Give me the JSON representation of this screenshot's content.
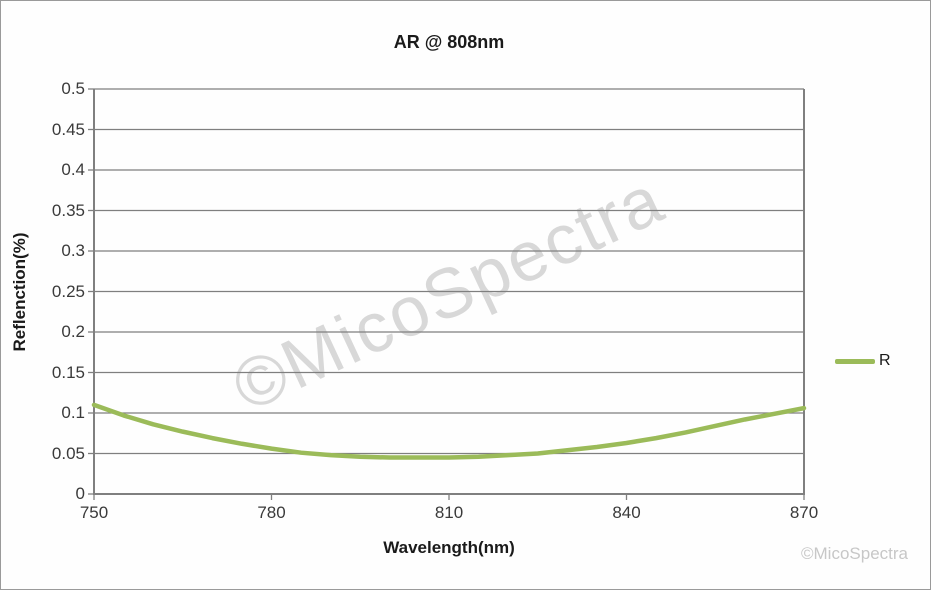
{
  "title": "AR @ 808nm",
  "colors": {
    "line": "#9bbb59",
    "gridline": "#7f7f7f",
    "axis": "#7f7f7f",
    "tick_text": "#3a3a3a",
    "watermark_center": "#aaaaaa",
    "watermark_corner": "#c7c7c7",
    "border": "#9a9a9a",
    "background": "#fefefe"
  },
  "watermark": {
    "center_text": "©MicoSpectra",
    "corner_text": "©MicoSpectra"
  },
  "legend": {
    "entries": [
      {
        "label": "R",
        "color": "#9bbb59"
      }
    ]
  },
  "chart_data": {
    "type": "line",
    "title": "AR @ 808nm",
    "xlabel": "Wavelength(nm)",
    "ylabel": "Reflenction(%)",
    "xlim": [
      750,
      870
    ],
    "ylim": [
      0,
      0.5
    ],
    "x_tick_values": [
      750,
      780,
      810,
      840,
      870
    ],
    "x_tick_labels": [
      "750",
      "780",
      "810",
      "840",
      "870"
    ],
    "y_tick_values": [
      0,
      0.05,
      0.1,
      0.15,
      0.2,
      0.25,
      0.3,
      0.35,
      0.4,
      0.45,
      0.5
    ],
    "y_tick_labels": [
      "0",
      "0.05",
      "0.1",
      "0.15",
      "0.2",
      "0.25",
      "0.3",
      "0.35",
      "0.4",
      "0.45",
      "0.5"
    ],
    "grid": "horizontal",
    "legend_position": "right",
    "series": [
      {
        "name": "R",
        "color": "#9bbb59",
        "x": [
          750,
          755,
          760,
          765,
          770,
          775,
          780,
          785,
          790,
          795,
          800,
          805,
          810,
          815,
          820,
          825,
          830,
          835,
          840,
          845,
          850,
          855,
          860,
          865,
          870
        ],
        "y": [
          0.11,
          0.097,
          0.086,
          0.077,
          0.069,
          0.062,
          0.056,
          0.051,
          0.048,
          0.046,
          0.045,
          0.045,
          0.045,
          0.046,
          0.048,
          0.05,
          0.054,
          0.058,
          0.063,
          0.069,
          0.076,
          0.084,
          0.092,
          0.099,
          0.106
        ]
      }
    ]
  }
}
